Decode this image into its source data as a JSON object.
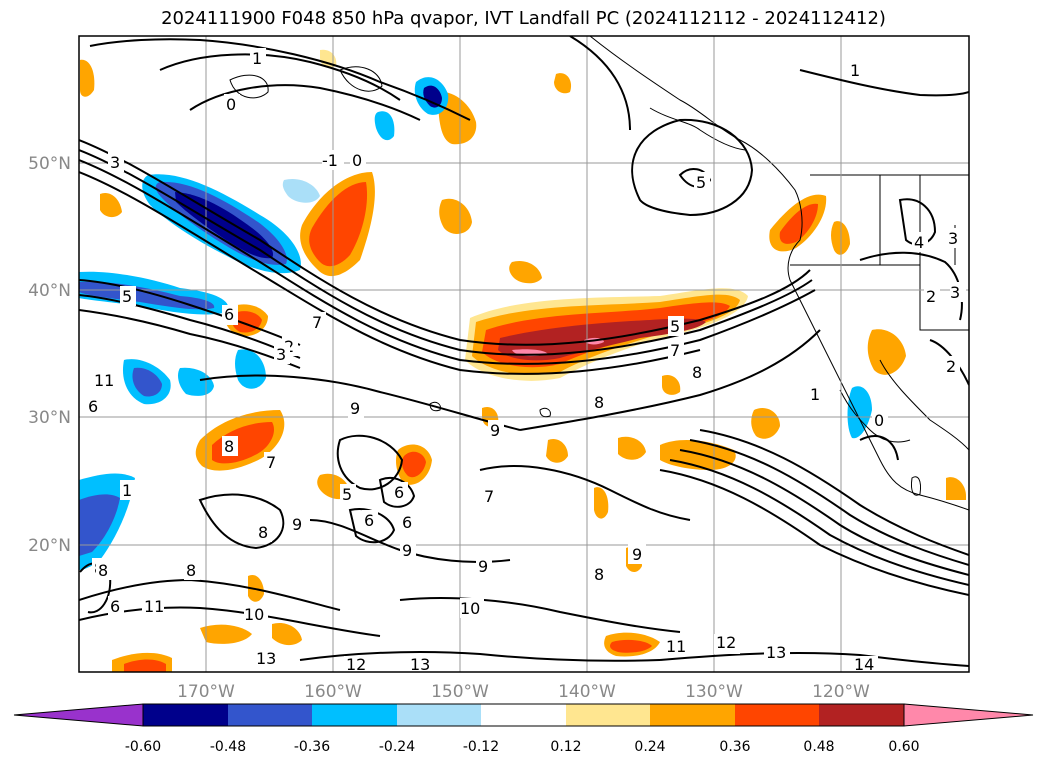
{
  "title": "2024111900 F048 850 hPa qvapor, IVT Landfall PC (2024112112 - 2024112412)",
  "map": {
    "lon_ticks": [
      "170°W",
      "160°W",
      "150°W",
      "140°W",
      "130°W",
      "120°W"
    ],
    "lat_ticks": [
      "50°N",
      "40°N",
      "30°N",
      "20°N"
    ],
    "contour_labels": [
      "1",
      "0",
      "5",
      "-1",
      "0",
      "1",
      "3",
      "5",
      "6",
      "2",
      "7",
      "3",
      "9",
      "5",
      "8",
      "8",
      "7",
      "9",
      "8",
      "6",
      "11",
      "8",
      "11",
      "7",
      "6",
      "9",
      "9",
      "5",
      "7",
      "6",
      "6",
      "8",
      "8",
      "8",
      "9",
      "6",
      "8",
      "9",
      "10",
      "11",
      "10",
      "13",
      "12",
      "13",
      "12",
      "13",
      "11",
      "14",
      "1",
      "0",
      "2",
      "3",
      "2",
      "4",
      "3",
      "9",
      "1"
    ]
  },
  "colorbar": {
    "labels": [
      "-0.60",
      "-0.48",
      "-0.36",
      "-0.24",
      "-0.12",
      "0.12",
      "0.24",
      "0.36",
      "0.48",
      "0.60"
    ],
    "colors": [
      "#9932cc",
      "#00008b",
      "#3355cc",
      "#00bfff",
      "#aadff8",
      "#ffffff",
      "#ffe690",
      "#ffa500",
      "#ff4500",
      "#b22222",
      "#ff88aa"
    ]
  }
}
